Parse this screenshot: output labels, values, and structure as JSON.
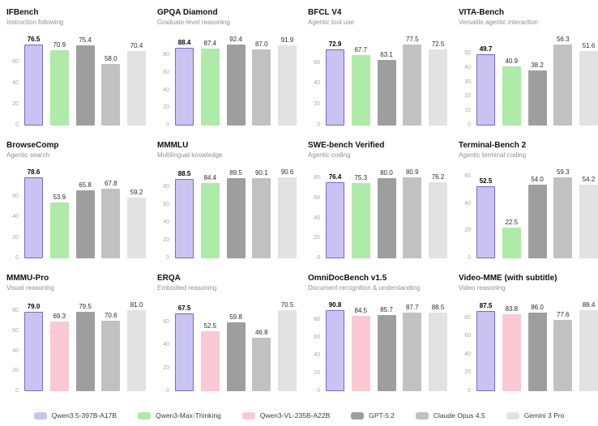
{
  "legend": {
    "items": [
      {
        "label": "Qwen3.5-397B-A17B",
        "color": "#c9c3f2",
        "border": "#7568cb"
      },
      {
        "label": "Qwen3-Max-Thinking",
        "color": "#aeeaa8"
      },
      {
        "label": "Qwen3-VL-235B-A22B",
        "color": "#fac9d3"
      },
      {
        "label": "GPT-5.2",
        "color": "#9e9e9e"
      },
      {
        "label": "Claude Opus 4.5",
        "color": "#c1c1c1"
      },
      {
        "label": "Gemini 3 Pro",
        "color": "#e2e2e2"
      }
    ]
  },
  "chart_data": [
    {
      "type": "bar",
      "title": "IFBench",
      "subtitle": "Instruction following",
      "yticks": [
        0,
        20,
        40,
        60
      ],
      "series": [
        {
          "name": "Qwen3.5-397B-A17B",
          "value": 76.5
        },
        {
          "name": "Qwen3-Max-Thinking",
          "value": 70.9
        },
        {
          "name": "GPT-5.2",
          "value": 75.4
        },
        {
          "name": "Claude Opus 4.5",
          "value": 58.0
        },
        {
          "name": "Gemini 3 Pro",
          "value": 70.4
        }
      ]
    },
    {
      "type": "bar",
      "title": "GPQA Diamond",
      "subtitle": "Graduate-level reasoning",
      "yticks": [
        0,
        20,
        40,
        60,
        80
      ],
      "series": [
        {
          "name": "Qwen3.5-397B-A17B",
          "value": 88.4
        },
        {
          "name": "Qwen3-Max-Thinking",
          "value": 87.4
        },
        {
          "name": "GPT-5.2",
          "value": 92.4
        },
        {
          "name": "Claude Opus 4.5",
          "value": 87.0
        },
        {
          "name": "Gemini 3 Pro",
          "value": 91.9
        }
      ]
    },
    {
      "type": "bar",
      "title": "BFCL V4",
      "subtitle": "Agentic tool use",
      "yticks": [
        0,
        20,
        40,
        60
      ],
      "series": [
        {
          "name": "Qwen3.5-397B-A17B",
          "value": 72.9
        },
        {
          "name": "Qwen3-Max-Thinking",
          "value": 67.7
        },
        {
          "name": "GPT-5.2",
          "value": 63.1
        },
        {
          "name": "Claude Opus 4.5",
          "value": 77.5
        },
        {
          "name": "Gemini 3 Pro",
          "value": 72.5
        }
      ]
    },
    {
      "type": "bar",
      "title": "VITA-Bench",
      "subtitle": "Versatile agentic interaction",
      "yticks": [
        0,
        10,
        20,
        30,
        40,
        50
      ],
      "series": [
        {
          "name": "Qwen3.5-397B-A17B",
          "value": 49.7
        },
        {
          "name": "Qwen3-Max-Thinking",
          "value": 40.9
        },
        {
          "name": "GPT-5.2",
          "value": 38.2
        },
        {
          "name": "Claude Opus 4.5",
          "value": 56.3
        },
        {
          "name": "Gemini 3 Pro",
          "value": 51.6
        }
      ]
    },
    {
      "type": "bar",
      "title": "BrowseComp",
      "subtitle": "Agentic search",
      "yticks": [
        0,
        20,
        40,
        60
      ],
      "series": [
        {
          "name": "Qwen3.5-397B-A17B",
          "value": 78.6
        },
        {
          "name": "Qwen3-Max-Thinking",
          "value": 53.9
        },
        {
          "name": "GPT-5.2",
          "value": 65.8
        },
        {
          "name": "Claude Opus 4.5",
          "value": 67.8
        },
        {
          "name": "Gemini 3 Pro",
          "value": 59.2
        }
      ]
    },
    {
      "type": "bar",
      "title": "MMMLU",
      "subtitle": "Multilingual knowledge",
      "yticks": [
        0,
        20,
        40,
        60,
        80
      ],
      "series": [
        {
          "name": "Qwen3.5-397B-A17B",
          "value": 88.5
        },
        {
          "name": "Qwen3-Max-Thinking",
          "value": 84.4
        },
        {
          "name": "GPT-5.2",
          "value": 89.5
        },
        {
          "name": "Claude Opus 4.5",
          "value": 90.1
        },
        {
          "name": "Gemini 3 Pro",
          "value": 90.6
        }
      ]
    },
    {
      "type": "bar",
      "title": "SWE-bench Verified",
      "subtitle": "Agentic coding",
      "yticks": [
        0,
        20,
        40,
        60,
        80
      ],
      "series": [
        {
          "name": "Qwen3.5-397B-A17B",
          "value": 76.4
        },
        {
          "name": "Qwen3-Max-Thinking",
          "value": 75.3
        },
        {
          "name": "GPT-5.2",
          "value": 80.0
        },
        {
          "name": "Claude Opus 4.5",
          "value": 80.9
        },
        {
          "name": "Gemini 3 Pro",
          "value": 76.2
        }
      ]
    },
    {
      "type": "bar",
      "title": "Terminal-Bench 2",
      "subtitle": "Agentic terminal coding",
      "yticks": [
        0,
        20,
        40,
        60
      ],
      "series": [
        {
          "name": "Qwen3.5-397B-A17B",
          "value": 52.5
        },
        {
          "name": "Qwen3-Max-Thinking",
          "value": 22.5
        },
        {
          "name": "GPT-5.2",
          "value": 54.0
        },
        {
          "name": "Claude Opus 4.5",
          "value": 59.3
        },
        {
          "name": "Gemini 3 Pro",
          "value": 54.2
        }
      ]
    },
    {
      "type": "bar",
      "title": "MMMU-Pro",
      "subtitle": "Visual reasoning",
      "yticks": [
        0,
        20,
        40,
        60,
        80
      ],
      "series": [
        {
          "name": "Qwen3.5-397B-A17B",
          "value": 79.0
        },
        {
          "name": "Qwen3-VL-235B-A22B",
          "value": 69.3
        },
        {
          "name": "GPT-5.2",
          "value": 79.5
        },
        {
          "name": "Claude Opus 4.5",
          "value": 70.6
        },
        {
          "name": "Gemini 3 Pro",
          "value": 81.0
        }
      ]
    },
    {
      "type": "bar",
      "title": "ERQA",
      "subtitle": "Embodied reasoning",
      "yticks": [
        0,
        20,
        40,
        60
      ],
      "series": [
        {
          "name": "Qwen3.5-397B-A17B",
          "value": 67.5
        },
        {
          "name": "Qwen3-VL-235B-A22B",
          "value": 52.5
        },
        {
          "name": "GPT-5.2",
          "value": 59.8
        },
        {
          "name": "Claude Opus 4.5",
          "value": 46.8
        },
        {
          "name": "Gemini 3 Pro",
          "value": 70.5
        }
      ]
    },
    {
      "type": "bar",
      "title": "OmniDocBench v1.5",
      "subtitle": "Document recognition & understanding",
      "yticks": [
        0,
        20,
        40,
        60,
        80
      ],
      "series": [
        {
          "name": "Qwen3.5-397B-A17B",
          "value": 90.8
        },
        {
          "name": "Qwen3-VL-235B-A22B",
          "value": 84.5
        },
        {
          "name": "GPT-5.2",
          "value": 85.7
        },
        {
          "name": "Claude Opus 4.5",
          "value": 87.7
        },
        {
          "name": "Gemini 3 Pro",
          "value": 88.5
        }
      ]
    },
    {
      "type": "bar",
      "title": "Video-MME (with subtitle)",
      "subtitle": "Video reasoning",
      "yticks": [
        0,
        20,
        40,
        60,
        80
      ],
      "series": [
        {
          "name": "Qwen3.5-397B-A17B",
          "value": 87.5
        },
        {
          "name": "Qwen3-VL-235B-A22B",
          "value": 83.8
        },
        {
          "name": "GPT-5.2",
          "value": 86.0
        },
        {
          "name": "Claude Opus 4.5",
          "value": 77.6
        },
        {
          "name": "Gemini 3 Pro",
          "value": 88.4
        }
      ]
    }
  ]
}
